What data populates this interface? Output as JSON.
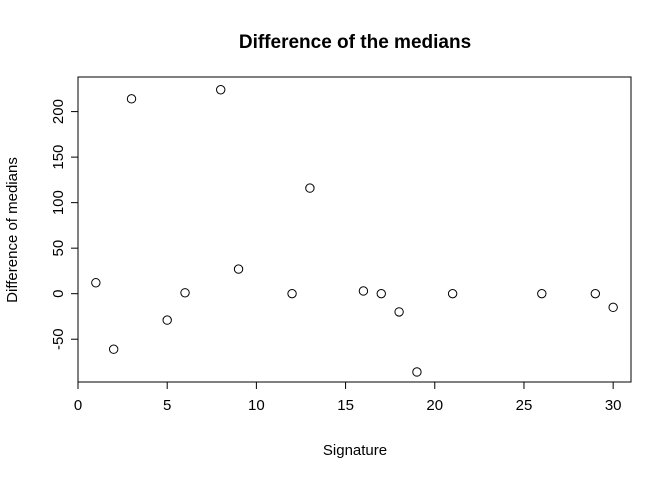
{
  "chart_data": {
    "type": "scatter",
    "title": "Difference of the medians",
    "xlabel": "Signature",
    "ylabel": "Difference of medians",
    "xlim": [
      0,
      31
    ],
    "ylim": [
      -97,
      238
    ],
    "x_ticks": [
      "0",
      "5",
      "10",
      "15",
      "20",
      "25",
      "30"
    ],
    "y_ticks": [
      "-50",
      "0",
      "50",
      "100",
      "150",
      "200"
    ],
    "grid": false,
    "marker": "open-circle",
    "points": [
      {
        "x": 1,
        "y": 12
      },
      {
        "x": 2,
        "y": -61
      },
      {
        "x": 3,
        "y": 214
      },
      {
        "x": 5,
        "y": -29
      },
      {
        "x": 6,
        "y": 1
      },
      {
        "x": 8,
        "y": 224
      },
      {
        "x": 9,
        "y": 27
      },
      {
        "x": 12,
        "y": 0
      },
      {
        "x": 13,
        "y": 116
      },
      {
        "x": 16,
        "y": 3
      },
      {
        "x": 17,
        "y": 0
      },
      {
        "x": 18,
        "y": -20
      },
      {
        "x": 19,
        "y": -86
      },
      {
        "x": 21,
        "y": 0
      },
      {
        "x": 26,
        "y": 0
      },
      {
        "x": 29,
        "y": 0
      },
      {
        "x": 30,
        "y": -15
      }
    ]
  }
}
